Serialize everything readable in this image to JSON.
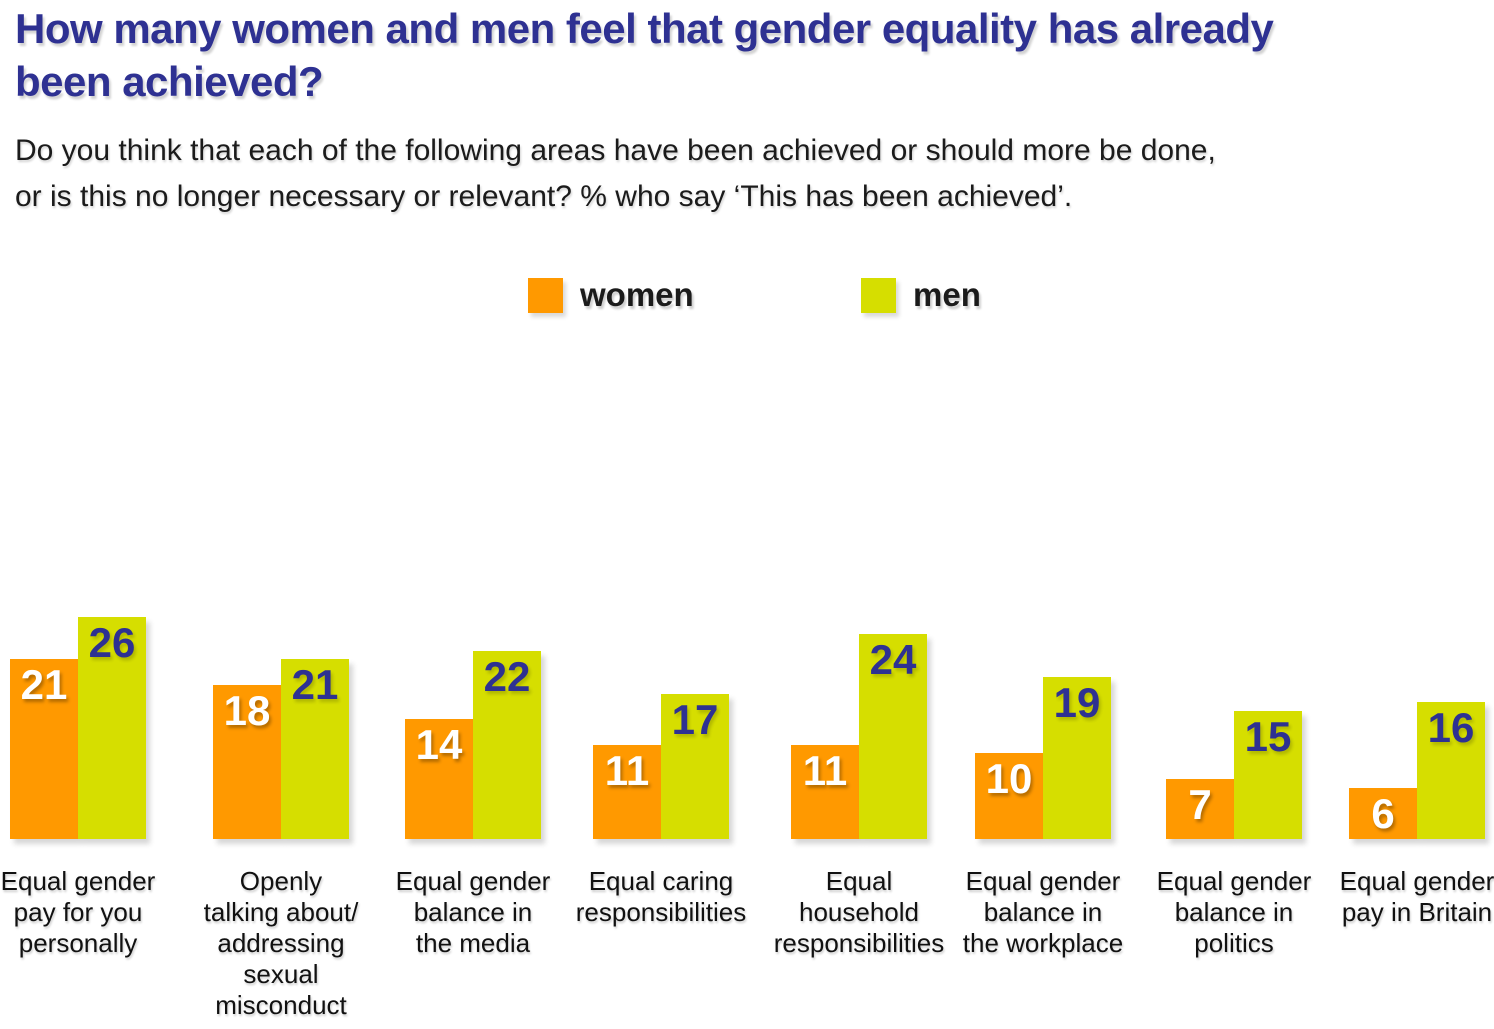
{
  "title_lines": [
    "How many women and men feel that gender equality has already",
    "been achieved?"
  ],
  "subtitle_lines": [
    "Do you think that each of the following areas have been achieved or should more be done,",
    "or is this no longer necessary or relevant? % who say ‘This has been achieved’."
  ],
  "legend": {
    "women_label": "women",
    "men_label": "men"
  },
  "colors": {
    "women": "#FF9900",
    "men": "#D6DE00",
    "navy": "#2E3192",
    "women_value_text": "#FFFFFF",
    "men_value_text": "#2E3192"
  },
  "chart_data": {
    "type": "bar",
    "title": "How many women and men feel that gender equality has already been achieved?",
    "subtitle": "Do you think that each of the following areas have been achieved or should more be done, or is this no longer necessary or relevant? % who say ‘This has been achieved’.",
    "unit": "%",
    "xlabel": "",
    "ylabel": "",
    "ylim": [
      0,
      30
    ],
    "grid": false,
    "axes_shown": false,
    "value_labels_shown": true,
    "legend_position": "top-center",
    "categories": [
      "Equal gender pay for you personally",
      "Openly talking about/addressing sexual misconduct",
      "Equal gender balance in the media",
      "Equal caring responsibilities",
      "Equal household responsibilities",
      "Equal gender balance in the workplace",
      "Equal gender balance in politics",
      "Equal gender pay in Britain"
    ],
    "category_lines": [
      [
        "Equal gender",
        "pay for you",
        "personally"
      ],
      [
        "Openly",
        "talking about/",
        "addressing",
        "sexual",
        "misconduct"
      ],
      [
        "Equal gender",
        "balance in",
        "the media"
      ],
      [
        "Equal caring",
        "responsibilities"
      ],
      [
        "Equal",
        "household",
        "responsibilities"
      ],
      [
        "Equal gender",
        "balance in",
        "the workplace"
      ],
      [
        "Equal gender",
        "balance in",
        "politics"
      ],
      [
        "Equal gender",
        "pay in Britain"
      ]
    ],
    "series": [
      {
        "name": "women",
        "color": "#FF9900",
        "values": [
          21,
          18,
          14,
          11,
          11,
          10,
          7,
          6
        ]
      },
      {
        "name": "men",
        "color": "#D6DE00",
        "values": [
          26,
          21,
          22,
          17,
          24,
          19,
          15,
          16
        ]
      }
    ]
  }
}
